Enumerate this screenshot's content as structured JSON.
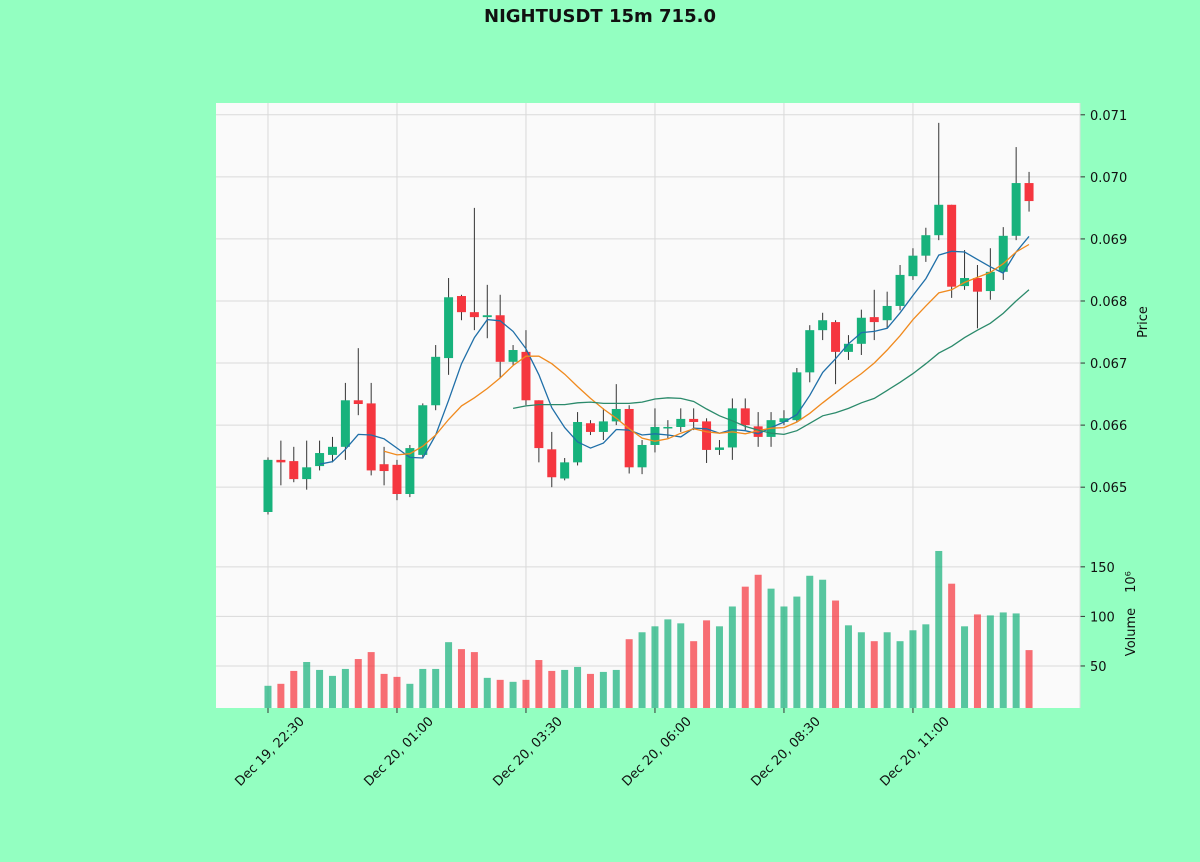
{
  "chart_data": {
    "type": "candlestick",
    "title": "NIGHTUSDT 15m 715.0",
    "ylabel": "Price",
    "y2label": "Volume",
    "y2_offset_label": "10⁶",
    "up_color": "#17b27c",
    "down_color": "#f5363f",
    "categories": [
      "Dec 19, 22:30",
      null,
      null,
      null,
      null,
      null,
      null,
      null,
      null,
      null,
      "Dec 20, 01:00",
      null,
      null,
      null,
      null,
      null,
      null,
      null,
      null,
      null,
      "Dec 20, 03:30",
      null,
      null,
      null,
      null,
      null,
      null,
      null,
      null,
      null,
      "Dec 20, 06:00",
      null,
      null,
      null,
      null,
      null,
      null,
      null,
      null,
      null,
      "Dec 20, 08:30",
      null,
      null,
      null,
      null,
      null,
      null,
      null,
      null,
      null,
      "Dec 20, 11:00",
      null,
      null,
      null,
      null,
      null,
      null,
      null,
      null,
      null
    ],
    "open": [
      0.0646,
      0.06544,
      0.06542,
      0.06513,
      0.06534,
      0.06552,
      0.06565,
      0.0664,
      0.06635,
      0.06537,
      0.06536,
      0.06489,
      0.06552,
      0.06632,
      0.06708,
      0.06808,
      0.06782,
      0.06774,
      0.06777,
      0.06702,
      0.06718,
      0.0664,
      0.06561,
      0.06514,
      0.0654,
      0.06603,
      0.06589,
      0.06606,
      0.06626,
      0.06532,
      0.06568,
      0.06595,
      0.06597,
      0.0661,
      0.06606,
      0.0656,
      0.06564,
      0.06627,
      0.06598,
      0.06581,
      0.06605,
      0.06608,
      0.06685,
      0.06753,
      0.06766,
      0.06718,
      0.06731,
      0.06774,
      0.06769,
      0.06792,
      0.0684,
      0.06873,
      0.06906,
      0.06955,
      0.06824,
      0.06837,
      0.06816,
      0.06847,
      0.06905,
      0.0699
    ],
    "high": [
      0.06548,
      0.06575,
      0.06565,
      0.06575,
      0.06575,
      0.06581,
      0.06668,
      0.06724,
      0.06668,
      0.06565,
      0.06544,
      0.06568,
      0.06635,
      0.06729,
      0.06837,
      0.0681,
      0.0695,
      0.06826,
      0.0681,
      0.06729,
      0.06753,
      0.0664,
      0.06589,
      0.06547,
      0.06621,
      0.06608,
      0.06627,
      0.06666,
      0.06632,
      0.06576,
      0.06627,
      0.06608,
      0.06627,
      0.06627,
      0.06611,
      0.06576,
      0.06643,
      0.06643,
      0.06621,
      0.06621,
      0.06624,
      0.06692,
      0.06761,
      0.06781,
      0.06769,
      0.06745,
      0.06786,
      0.06818,
      0.06815,
      0.06858,
      0.06885,
      0.06918,
      0.07087,
      0.06955,
      0.06882,
      0.06858,
      0.06885,
      0.06919,
      0.07048,
      0.07008
    ],
    "low": [
      0.06456,
      0.06503,
      0.06508,
      0.06496,
      0.06527,
      0.0654,
      0.06544,
      0.06616,
      0.06519,
      0.06503,
      0.06479,
      0.06484,
      0.06548,
      0.06624,
      0.06681,
      0.06769,
      0.06753,
      0.0674,
      0.06676,
      0.06697,
      0.06632,
      0.0654,
      0.065,
      0.06511,
      0.06535,
      0.06584,
      0.06576,
      0.066,
      0.06522,
      0.06521,
      0.06556,
      0.06579,
      0.06589,
      0.06592,
      0.06539,
      0.06552,
      0.06544,
      0.06592,
      0.06565,
      0.06565,
      0.066,
      0.06605,
      0.06669,
      0.06737,
      0.06666,
      0.06705,
      0.06713,
      0.06737,
      0.06756,
      0.06785,
      0.06834,
      0.06863,
      0.06898,
      0.06805,
      0.06818,
      0.06756,
      0.06802,
      0.06834,
      0.06898,
      0.06944
    ],
    "close": [
      0.06544,
      0.0654,
      0.06513,
      0.06532,
      0.06555,
      0.06565,
      0.0664,
      0.06634,
      0.06527,
      0.06526,
      0.06489,
      0.06563,
      0.06632,
      0.0671,
      0.06806,
      0.06782,
      0.06774,
      0.06777,
      0.06702,
      0.06721,
      0.0664,
      0.06563,
      0.06516,
      0.0654,
      0.06605,
      0.06589,
      0.06606,
      0.06626,
      0.06532,
      0.06568,
      0.06597,
      0.06597,
      0.0661,
      0.06605,
      0.0656,
      0.06564,
      0.06627,
      0.066,
      0.06581,
      0.06608,
      0.06611,
      0.06685,
      0.06753,
      0.06769,
      0.06718,
      0.06731,
      0.06773,
      0.06766,
      0.06792,
      0.06842,
      0.06873,
      0.06906,
      0.06955,
      0.06823,
      0.06837,
      0.06815,
      0.06847,
      0.06905,
      0.0699,
      0.06961
    ],
    "volume": [
      30,
      32,
      45,
      54,
      46,
      40,
      47,
      57,
      64,
      42,
      39,
      32,
      47,
      47,
      74,
      67,
      64,
      38,
      36,
      34,
      36,
      56,
      45,
      46,
      49,
      42,
      44,
      46,
      77,
      84,
      90,
      97,
      93,
      75,
      96,
      90,
      110,
      130,
      142,
      128,
      110,
      120,
      141,
      137,
      116,
      91,
      84,
      75,
      84,
      75,
      86,
      92,
      166,
      133,
      90,
      102,
      101,
      104,
      103,
      66
    ],
    "moving_averages": [
      {
        "color": "#1f6fa8",
        "values": [
          null,
          null,
          null,
          null,
          0.06537,
          0.06541,
          0.06561,
          0.06585,
          0.06584,
          0.06578,
          0.06563,
          0.06548,
          0.06547,
          0.06584,
          0.0664,
          0.06699,
          0.06741,
          0.0677,
          0.06768,
          0.06751,
          0.06723,
          0.06681,
          0.06628,
          0.06596,
          0.06573,
          0.06563,
          0.06571,
          0.06593,
          0.06592,
          0.06584,
          0.06586,
          0.06584,
          0.06581,
          0.06595,
          0.06594,
          0.06587,
          0.06593,
          0.06591,
          0.06586,
          0.06596,
          0.06605,
          0.06617,
          0.06648,
          0.06685,
          0.06707,
          0.06731,
          0.06749,
          0.06751,
          0.06756,
          0.06781,
          0.06809,
          0.06836,
          0.06874,
          0.0688,
          0.06879,
          0.06867,
          0.06855,
          0.06845,
          0.06879,
          0.06904
        ]
      },
      {
        "color": "#f08a1e",
        "values": [
          null,
          null,
          null,
          null,
          null,
          null,
          null,
          null,
          null,
          0.06558,
          0.06552,
          0.06554,
          0.06566,
          0.06584,
          0.06609,
          0.06631,
          0.06644,
          0.06659,
          0.06676,
          0.06696,
          0.06711,
          0.06711,
          0.06699,
          0.06682,
          0.06662,
          0.06643,
          0.06626,
          0.06611,
          0.06594,
          0.06579,
          0.06574,
          0.06578,
          0.06587,
          0.06594,
          0.06589,
          0.06587,
          0.06589,
          0.06586,
          0.06591,
          0.06595,
          0.06596,
          0.06605,
          0.06619,
          0.06636,
          0.06652,
          0.06668,
          0.06683,
          0.067,
          0.06721,
          0.06744,
          0.0677,
          0.06792,
          0.06813,
          0.06818,
          0.0683,
          0.06838,
          0.06846,
          0.0686,
          0.06879,
          0.06891
        ]
      },
      {
        "color": "#2b8a6b",
        "values": [
          null,
          null,
          null,
          null,
          null,
          null,
          null,
          null,
          null,
          null,
          null,
          null,
          null,
          null,
          null,
          null,
          null,
          null,
          null,
          0.06627,
          0.06631,
          0.06633,
          0.06633,
          0.06633,
          0.06636,
          0.06637,
          0.06635,
          0.06635,
          0.06635,
          0.06637,
          0.06642,
          0.06644,
          0.06643,
          0.06638,
          0.06626,
          0.06615,
          0.06607,
          0.06598,
          0.06592,
          0.06587,
          0.06585,
          0.06591,
          0.06603,
          0.06615,
          0.0662,
          0.06627,
          0.06636,
          0.06643,
          0.06656,
          0.06669,
          0.06683,
          0.06699,
          0.06716,
          0.06727,
          0.06741,
          0.06753,
          0.06764,
          0.0678,
          0.068,
          0.06818
        ]
      }
    ],
    "xlim": [
      -4.03,
      62.95
    ],
    "ylim": [
      0.06402,
      0.07119
    ],
    "yticks": [
      0.065,
      0.066,
      0.067,
      0.068,
      0.069,
      {
        "value": 0.07,
        "label": "0.070"
      },
      0.071
    ],
    "y2lim": [
      7.6,
      169
    ],
    "y2ticks": [
      50,
      100,
      150
    ],
    "grid": true
  }
}
